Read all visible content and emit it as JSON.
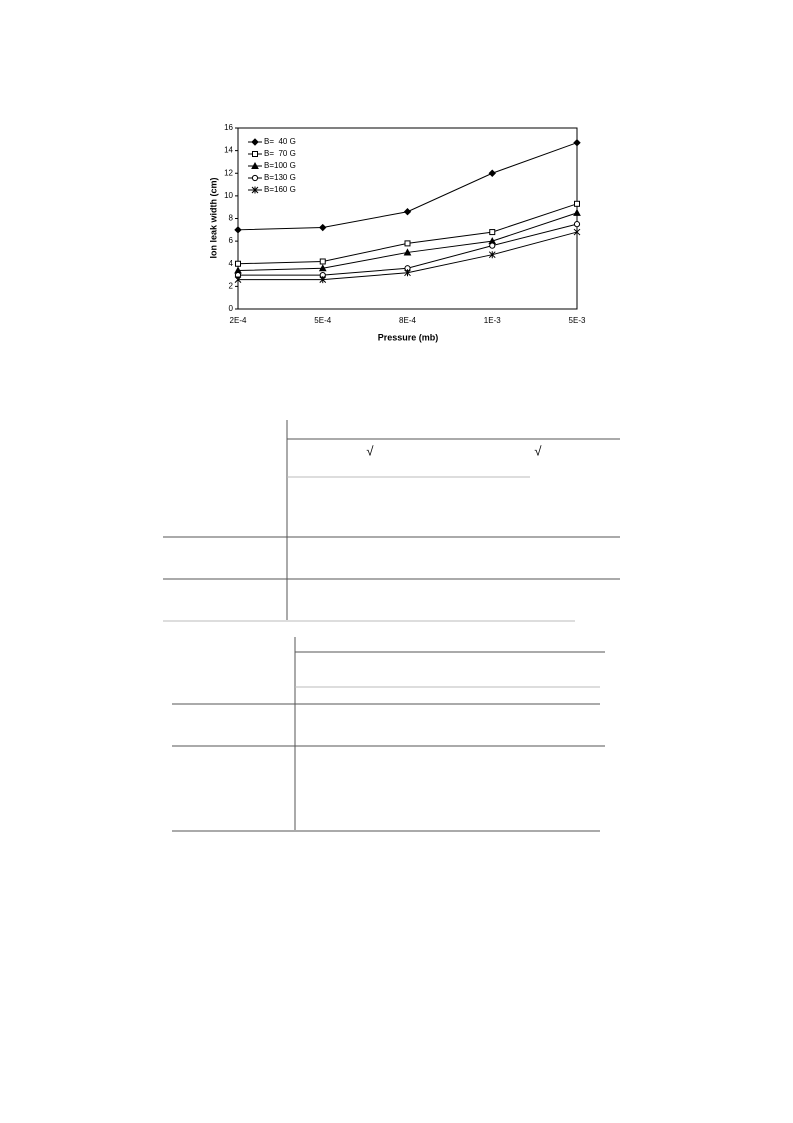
{
  "chart_data": {
    "type": "line",
    "x_label": "Pressure (mb)",
    "y_label": "Ion leak width (cm)",
    "categories": [
      "2E-4",
      "5E-4",
      "8E-4",
      "1E-3",
      "5E-3"
    ],
    "series": [
      {
        "name": "B=  40 G",
        "color": "#000000",
        "marker": "diamond",
        "values": [
          7.0,
          7.2,
          8.6,
          12.0,
          14.7
        ]
      },
      {
        "name": "B=  70 G",
        "color": "#000000",
        "marker": "square-open",
        "values": [
          4.0,
          4.2,
          5.8,
          6.8,
          9.3
        ]
      },
      {
        "name": "B=100 G",
        "color": "#000000",
        "marker": "triangle",
        "values": [
          3.4,
          3.6,
          5.0,
          6.0,
          8.5
        ]
      },
      {
        "name": "B=130 G",
        "color": "#000000",
        "marker": "circle-open",
        "values": [
          3.0,
          3.0,
          3.6,
          5.6,
          7.5
        ]
      },
      {
        "name": "B=160 G",
        "color": "#000000",
        "marker": "asterisk",
        "values": [
          2.6,
          2.6,
          3.2,
          4.8,
          6.8
        ]
      }
    ],
    "ylim": [
      0,
      16
    ],
    "yticks": [
      0,
      2,
      4,
      6,
      8,
      10,
      12,
      14,
      16
    ],
    "grid": false,
    "legend": "upper left"
  },
  "table": {
    "checks": [
      "√",
      "√"
    ]
  }
}
